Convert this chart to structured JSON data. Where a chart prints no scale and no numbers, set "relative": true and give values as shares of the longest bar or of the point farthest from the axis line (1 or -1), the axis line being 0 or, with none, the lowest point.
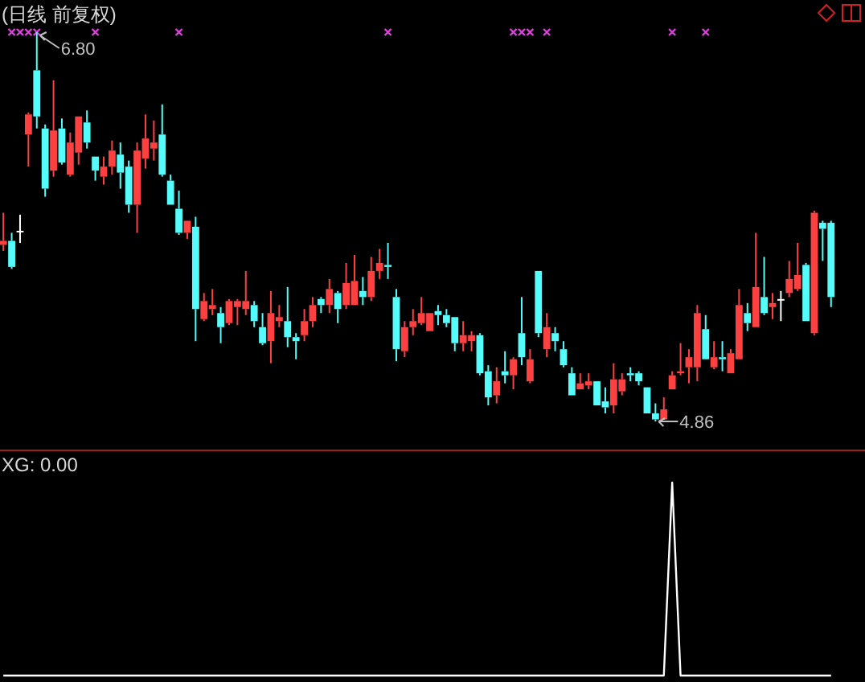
{
  "chart_data": [
    {
      "type": "candlestick",
      "title": "(日线 前复权)",
      "categories": [
        null,
        null,
        null,
        null,
        null,
        null,
        null,
        null,
        null,
        null,
        null,
        null,
        null,
        null,
        null,
        null,
        null,
        null,
        null,
        null,
        null,
        null,
        null,
        null,
        null,
        null,
        null,
        null,
        null,
        null,
        null,
        null,
        null,
        null,
        null,
        null,
        null,
        null,
        null,
        null,
        null,
        null,
        null,
        null,
        null,
        null,
        null,
        null,
        null,
        null,
        null,
        null,
        null,
        null,
        null,
        null,
        null,
        null,
        null,
        null,
        null,
        null,
        null,
        null,
        null,
        null,
        null,
        null,
        null,
        null,
        null,
        null,
        null,
        null,
        null,
        null,
        null,
        null,
        null,
        null,
        null,
        null,
        null,
        null,
        null,
        null,
        null,
        null,
        null,
        null,
        null,
        null,
        null,
        null,
        null,
        null,
        null,
        null,
        null,
        null
      ],
      "ohlc": [
        [
          5.74,
          5.9,
          5.71,
          5.76
        ],
        [
          5.76,
          5.8,
          5.62,
          5.63
        ],
        [
          5.81,
          5.89,
          5.75,
          5.81
        ],
        [
          6.29,
          6.4,
          6.13,
          6.39
        ],
        [
          6.61,
          6.8,
          6.32,
          6.38
        ],
        [
          6.32,
          6.34,
          5.98,
          6.02
        ],
        [
          6.11,
          6.56,
          6.08,
          6.31
        ],
        [
          6.32,
          6.37,
          6.14,
          6.15
        ],
        [
          6.09,
          6.3,
          6.08,
          6.25
        ],
        [
          6.2,
          6.38,
          6.14,
          6.38
        ],
        [
          6.35,
          6.41,
          6.22,
          6.25
        ],
        [
          6.18,
          6.18,
          6.06,
          6.11
        ],
        [
          6.08,
          6.18,
          6.04,
          6.13
        ],
        [
          6.13,
          6.26,
          6.09,
          6.21
        ],
        [
          6.19,
          6.25,
          6.02,
          6.1
        ],
        [
          6.13,
          6.16,
          5.9,
          5.94
        ],
        [
          5.94,
          6.25,
          5.8,
          6.21
        ],
        [
          6.17,
          6.39,
          6.12,
          6.27
        ],
        [
          6.22,
          6.36,
          6.16,
          6.25
        ],
        [
          6.29,
          6.44,
          6.08,
          6.09
        ],
        [
          6.06,
          6.09,
          5.94,
          5.94
        ],
        [
          5.92,
          6.01,
          5.79,
          5.8
        ],
        [
          5.8,
          5.86,
          5.77,
          5.86
        ],
        [
          5.83,
          5.88,
          5.26,
          5.42
        ],
        [
          5.37,
          5.5,
          5.36,
          5.46
        ],
        [
          5.42,
          5.52,
          5.39,
          5.44
        ],
        [
          5.4,
          5.43,
          5.25,
          5.33
        ],
        [
          5.35,
          5.47,
          5.34,
          5.46
        ],
        [
          5.43,
          5.47,
          5.34,
          5.46
        ],
        [
          5.42,
          5.61,
          5.39,
          5.46
        ],
        [
          5.44,
          5.46,
          5.33,
          5.36
        ],
        [
          5.33,
          5.4,
          5.24,
          5.25
        ],
        [
          5.26,
          5.51,
          5.15,
          5.4
        ],
        [
          5.36,
          5.44,
          5.33,
          5.38
        ],
        [
          5.36,
          5.53,
          5.23,
          5.28
        ],
        [
          5.28,
          5.3,
          5.17,
          5.26
        ],
        [
          5.29,
          5.42,
          5.26,
          5.36
        ],
        [
          5.36,
          5.48,
          5.33,
          5.44
        ],
        [
          5.47,
          5.48,
          5.4,
          5.44
        ],
        [
          5.44,
          5.57,
          5.4,
          5.52
        ],
        [
          5.5,
          5.51,
          5.35,
          5.42
        ],
        [
          5.44,
          5.65,
          5.42,
          5.55
        ],
        [
          5.44,
          5.69,
          5.44,
          5.56
        ],
        [
          5.51,
          5.58,
          5.44,
          5.48
        ],
        [
          5.48,
          5.68,
          5.46,
          5.61
        ],
        [
          5.61,
          5.72,
          5.57,
          5.65
        ],
        [
          5.64,
          5.75,
          5.57,
          5.63
        ],
        [
          5.48,
          5.52,
          5.16,
          5.22
        ],
        [
          5.21,
          5.36,
          5.18,
          5.33
        ],
        [
          5.33,
          5.42,
          5.29,
          5.36
        ],
        [
          5.35,
          5.48,
          5.34,
          5.4
        ],
        [
          5.31,
          5.4,
          5.31,
          5.4
        ],
        [
          5.41,
          5.44,
          5.34,
          5.39
        ],
        [
          5.39,
          5.42,
          5.33,
          5.35
        ],
        [
          5.38,
          5.38,
          5.21,
          5.25
        ],
        [
          5.25,
          5.36,
          5.21,
          5.29
        ],
        [
          5.26,
          5.31,
          5.21,
          5.29
        ],
        [
          5.29,
          5.3,
          5.09,
          5.1
        ],
        [
          5.11,
          5.14,
          4.94,
          4.98
        ],
        [
          4.99,
          5.13,
          4.95,
          5.06
        ],
        [
          5.11,
          5.21,
          5.05,
          5.09
        ],
        [
          5.09,
          5.18,
          5.02,
          5.17
        ],
        [
          5.3,
          5.48,
          5.14,
          5.18
        ],
        [
          5.06,
          5.22,
          5.05,
          5.17
        ],
        [
          5.61,
          5.61,
          5.28,
          5.3
        ],
        [
          5.22,
          5.4,
          5.18,
          5.33
        ],
        [
          5.3,
          5.33,
          5.21,
          5.26
        ],
        [
          5.22,
          5.26,
          5.13,
          5.14
        ],
        [
          5.1,
          5.13,
          4.99,
          4.99
        ],
        [
          5.02,
          5.1,
          5.02,
          5.05
        ],
        [
          5.04,
          5.1,
          5.02,
          5.06
        ],
        [
          5.06,
          5.06,
          4.94,
          4.94
        ],
        [
          4.96,
          5.03,
          4.9,
          4.93
        ],
        [
          4.94,
          5.15,
          4.9,
          5.07
        ],
        [
          5.01,
          5.1,
          4.99,
          5.07
        ],
        [
          5.1,
          5.13,
          5.06,
          5.09
        ],
        [
          5.1,
          5.11,
          5.04,
          5.06
        ],
        [
          5.03,
          5.03,
          4.9,
          4.9
        ],
        [
          4.9,
          4.95,
          4.86,
          4.87
        ],
        [
          4.87,
          4.98,
          4.87,
          4.92
        ],
        [
          5.02,
          5.11,
          5.02,
          5.09
        ],
        [
          5.1,
          5.25,
          5.09,
          5.11
        ],
        [
          5.13,
          5.22,
          5.05,
          5.18
        ],
        [
          5.13,
          5.44,
          5.06,
          5.4
        ],
        [
          5.32,
          5.39,
          5.17,
          5.17
        ],
        [
          5.13,
          5.26,
          5.12,
          5.18
        ],
        [
          5.18,
          5.26,
          5.11,
          5.17
        ],
        [
          5.1,
          5.22,
          5.1,
          5.2
        ],
        [
          5.17,
          5.52,
          5.17,
          5.44
        ],
        [
          5.4,
          5.45,
          5.31,
          5.35
        ],
        [
          5.33,
          5.8,
          5.33,
          5.53
        ],
        [
          5.48,
          5.68,
          5.39,
          5.4
        ],
        [
          5.43,
          5.5,
          5.37,
          5.45
        ],
        [
          5.47,
          5.51,
          5.36,
          5.47
        ],
        [
          5.5,
          5.66,
          5.48,
          5.57
        ],
        [
          5.52,
          5.75,
          5.51,
          5.59
        ],
        [
          5.64,
          5.65,
          5.36,
          5.36
        ],
        [
          5.3,
          5.91,
          5.29,
          5.9
        ],
        [
          5.85,
          5.86,
          5.66,
          5.82
        ],
        [
          5.85,
          5.86,
          5.43,
          5.48
        ]
      ],
      "series": [
        {
          "type": "scatter",
          "color": "#e040e0",
          "marker": "cross",
          "values": [
            null,
            6.8,
            6.8,
            6.8,
            6.8,
            null,
            null,
            null,
            null,
            null,
            null,
            6.8,
            null,
            null,
            null,
            null,
            null,
            null,
            null,
            null,
            null,
            6.8,
            null,
            null,
            null,
            null,
            null,
            null,
            null,
            null,
            null,
            null,
            null,
            null,
            null,
            null,
            null,
            null,
            null,
            null,
            null,
            null,
            null,
            null,
            null,
            null,
            6.8,
            null,
            null,
            null,
            null,
            null,
            null,
            null,
            null,
            null,
            null,
            null,
            null,
            null,
            null,
            6.8,
            6.8,
            6.8,
            null,
            6.8,
            null,
            null,
            null,
            null,
            null,
            null,
            null,
            null,
            null,
            null,
            null,
            null,
            null,
            null,
            6.8,
            null,
            null,
            null,
            6.8,
            null,
            null,
            null,
            null,
            null,
            null,
            null,
            null,
            null,
            null,
            null,
            null,
            null,
            null,
            null
          ]
        }
      ],
      "annotations": [
        "6.80",
        "4.86"
      ]
    },
    {
      "type": "line",
      "title": "XG: 0.00",
      "relative": true,
      "categories": [
        null,
        null,
        null,
        null,
        null,
        null,
        null,
        null,
        null,
        null,
        null,
        null,
        null,
        null,
        null,
        null,
        null,
        null,
        null,
        null,
        null,
        null,
        null,
        null,
        null,
        null,
        null,
        null,
        null,
        null,
        null,
        null,
        null,
        null,
        null,
        null,
        null,
        null,
        null,
        null,
        null,
        null,
        null,
        null,
        null,
        null,
        null,
        null,
        null,
        null,
        null,
        null,
        null,
        null,
        null,
        null,
        null,
        null,
        null,
        null,
        null,
        null,
        null,
        null,
        null,
        null,
        null,
        null,
        null,
        null,
        null,
        null,
        null,
        null,
        null,
        null,
        null,
        null,
        null,
        null,
        null,
        null,
        null,
        null,
        null,
        null,
        null,
        null,
        null,
        null,
        null,
        null,
        null,
        null,
        null,
        null,
        null,
        null,
        null,
        null
      ],
      "series": [
        {
          "color": "#ffffff",
          "values": [
            0,
            0,
            0,
            0,
            0,
            0,
            0,
            0,
            0,
            0,
            0,
            0,
            0,
            0,
            0,
            0,
            0,
            0,
            0,
            0,
            0,
            0,
            0,
            0,
            0,
            0,
            0,
            0,
            0,
            0,
            0,
            0,
            0,
            0,
            0,
            0,
            0,
            0,
            0,
            0,
            0,
            0,
            0,
            0,
            0,
            0,
            0,
            0,
            0,
            0,
            0,
            0,
            0,
            0,
            0,
            0,
            0,
            0,
            0,
            0,
            0,
            0,
            0,
            0,
            0,
            0,
            0,
            0,
            0,
            0,
            0,
            0,
            0,
            0,
            0,
            0,
            0,
            0,
            0,
            0,
            1,
            0,
            0,
            0,
            0,
            0,
            0,
            0,
            0,
            0,
            0,
            0,
            0,
            0,
            0,
            0,
            0,
            0,
            0,
            0
          ]
        }
      ]
    }
  ]
}
